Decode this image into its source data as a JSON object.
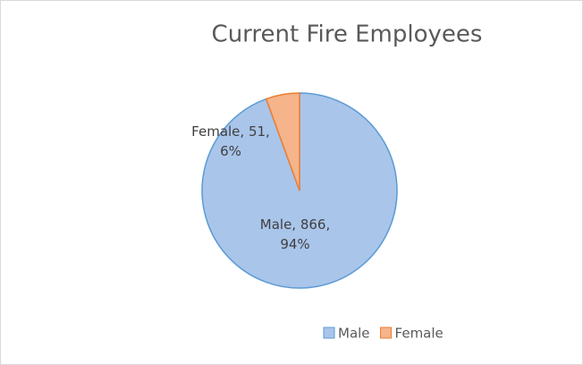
{
  "chart_data": {
    "type": "pie",
    "title": "Current Fire Employees",
    "categories": [
      "Male",
      "Female"
    ],
    "values": [
      866,
      51
    ],
    "value_labels": [
      "Male, 866, 94%",
      "Female, 51, 6%"
    ],
    "colors": [
      "#a9c5ea",
      "#f5b48a"
    ],
    "edge_colors": [
      "#5b9bd5",
      "#ed7d31"
    ],
    "legend": "bottom"
  }
}
